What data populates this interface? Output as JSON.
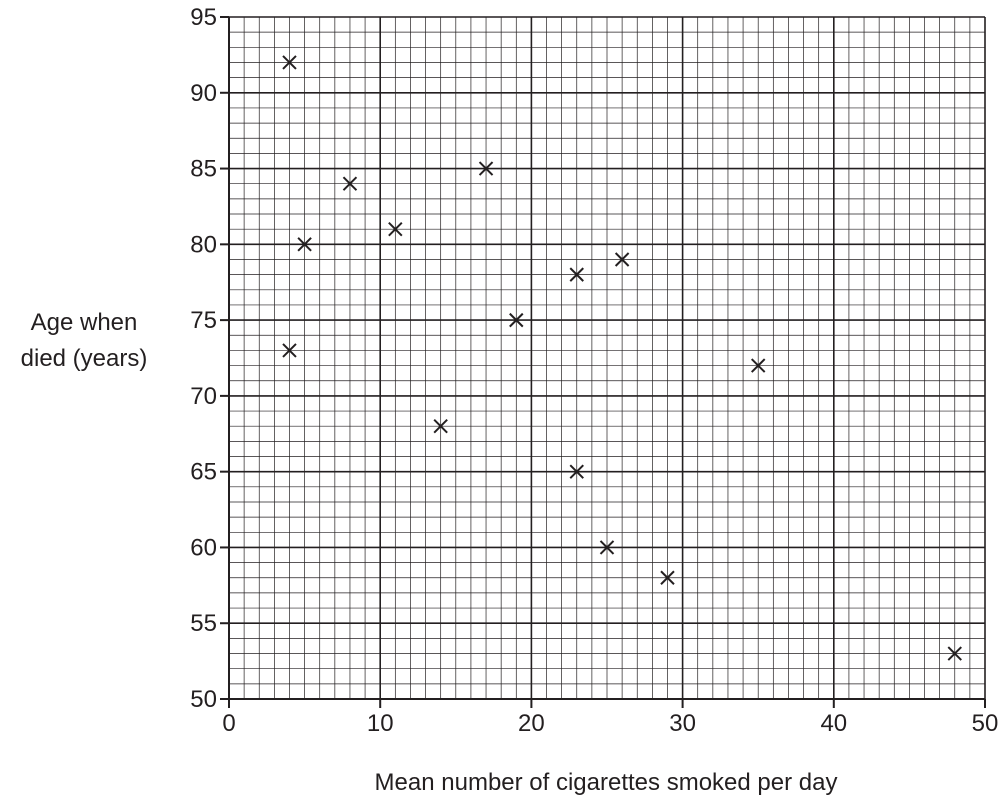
{
  "chart_data": {
    "type": "scatter",
    "title": "",
    "xlabel": "Mean number of cigarettes smoked per day",
    "ylabel_lines": [
      "Age when",
      "died (years)"
    ],
    "xlim": [
      0,
      50
    ],
    "ylim": [
      50,
      95
    ],
    "x_major_step": 10,
    "y_major_step": 5,
    "x_ticks": [
      "0",
      "10",
      "20",
      "30",
      "40",
      "50"
    ],
    "y_ticks": [
      "50",
      "55",
      "60",
      "65",
      "70",
      "75",
      "80",
      "85",
      "90",
      "95"
    ],
    "grid": true,
    "marker": "cross",
    "points": [
      {
        "x": 4,
        "y": 92
      },
      {
        "x": 4,
        "y": 73
      },
      {
        "x": 5,
        "y": 80
      },
      {
        "x": 8,
        "y": 84
      },
      {
        "x": 11,
        "y": 81
      },
      {
        "x": 14,
        "y": 68
      },
      {
        "x": 17,
        "y": 85
      },
      {
        "x": 19,
        "y": 75
      },
      {
        "x": 23,
        "y": 78
      },
      {
        "x": 23,
        "y": 65
      },
      {
        "x": 25,
        "y": 60
      },
      {
        "x": 26,
        "y": 79
      },
      {
        "x": 29,
        "y": 58
      },
      {
        "x": 35,
        "y": 72
      },
      {
        "x": 48,
        "y": 53
      }
    ]
  }
}
